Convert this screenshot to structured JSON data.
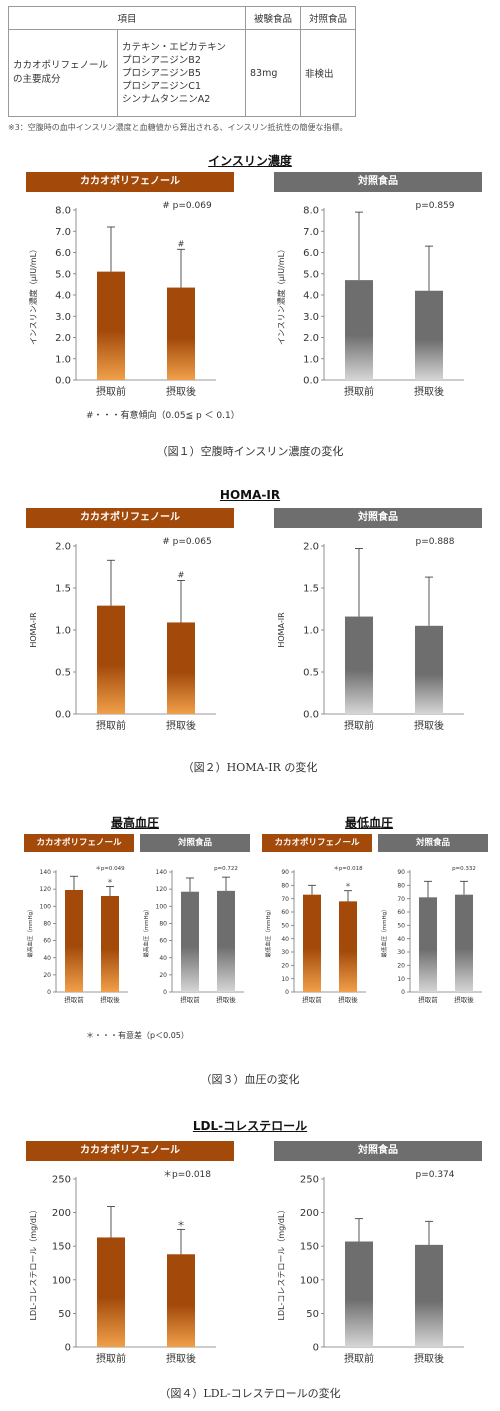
{
  "table": {
    "headers": [
      "項目",
      "被験食品",
      "対照食品"
    ],
    "row_label": "カカオポリフェノールの主要成分",
    "components": [
      "カテキン・エピカテキン",
      "プロシアニジンB2",
      "プロシアニジンB5",
      "プロシアニジンC1",
      "シンナムタンニンA2"
    ],
    "test_value": "83mg",
    "control_value": "非検出"
  },
  "note": "※3：空腹時の血中インスリン濃度と血糖値から算出される、インスリン抵抗性の簡便な指標。",
  "colors": {
    "cocoa": "#a34a0b",
    "control": "#6e6e6e"
  },
  "sections": [
    {
      "title": "インスリン濃度",
      "caption": "（図１）空腹時インスリン濃度の変化",
      "footnote": "#・・・有意傾向（0.05≦ p ＜ 0.1）"
    },
    {
      "title": "HOMA-IR",
      "caption": "（図２）HOMA-IR の変化",
      "footnote": ""
    },
    {
      "titles": [
        "最高血圧",
        "最低血圧"
      ],
      "caption": "（図３）血圧の変化",
      "footnote": "＊・・・有意差（p＜0.05）"
    },
    {
      "title": "LDL-コレステロール",
      "caption": "（図４）LDL-コレステロールの変化",
      "footnote": ""
    }
  ],
  "chart_data": [
    {
      "type": "bar",
      "group": "カカオポリフェノール",
      "categories": [
        "摂取前",
        "摂取後"
      ],
      "values": [
        5.1,
        4.35
      ],
      "errors": [
        2.1,
        1.8
      ],
      "marks": [
        "",
        "#"
      ],
      "pvalue": "# p=0.069",
      "ylabel": "インスリン濃度（μIU/mL）",
      "ylim": [
        0,
        8
      ],
      "ticks": [
        "0.0",
        "1.0",
        "2.0",
        "3.0",
        "4.0",
        "5.0",
        "6.0",
        "7.0",
        "8.0"
      ]
    },
    {
      "type": "bar",
      "group": "対照食品",
      "categories": [
        "摂取前",
        "摂取後"
      ],
      "values": [
        4.7,
        4.2
      ],
      "errors": [
        3.2,
        2.1
      ],
      "marks": [
        "",
        ""
      ],
      "pvalue": "p=0.859",
      "ylabel": "インスリン濃度（μIU/mL）",
      "ylim": [
        0,
        8
      ],
      "ticks": [
        "0.0",
        "1.0",
        "2.0",
        "3.0",
        "4.0",
        "5.0",
        "6.0",
        "7.0",
        "8.0"
      ]
    },
    {
      "type": "bar",
      "group": "カカオポリフェノール",
      "categories": [
        "摂取前",
        "摂取後"
      ],
      "values": [
        1.29,
        1.09
      ],
      "errors": [
        0.54,
        0.5
      ],
      "marks": [
        "",
        "#"
      ],
      "pvalue": "# p=0.065",
      "ylabel": "HOMA-IR",
      "ylim": [
        0,
        2
      ],
      "ticks": [
        "0.0",
        "0.5",
        "1.0",
        "1.5",
        "2.0"
      ]
    },
    {
      "type": "bar",
      "group": "対照食品",
      "categories": [
        "摂取前",
        "摂取後"
      ],
      "values": [
        1.16,
        1.05
      ],
      "errors": [
        0.81,
        0.58
      ],
      "marks": [
        "",
        ""
      ],
      "pvalue": "p=0.888",
      "ylabel": "HOMA-IR",
      "ylim": [
        0,
        2
      ],
      "ticks": [
        "0.0",
        "0.5",
        "1.0",
        "1.5",
        "2.0"
      ]
    },
    {
      "type": "bar",
      "group": "カカオポリフェノール",
      "categories": [
        "摂取前",
        "摂取後"
      ],
      "values": [
        119,
        112
      ],
      "errors": [
        16,
        11
      ],
      "marks": [
        "",
        "＊"
      ],
      "pvalue": "＊p=0.049",
      "ylabel": "最高血圧（mmHg）",
      "ylim": [
        0,
        140
      ],
      "ticks": [
        "0",
        "20",
        "40",
        "60",
        "80",
        "100",
        "120",
        "140"
      ]
    },
    {
      "type": "bar",
      "group": "対照食品",
      "categories": [
        "摂取前",
        "摂取後"
      ],
      "values": [
        117,
        118
      ],
      "errors": [
        16,
        16
      ],
      "marks": [
        "",
        ""
      ],
      "pvalue": "p=0.722",
      "ylabel": "最高血圧（mmHg）",
      "ylim": [
        0,
        140
      ],
      "ticks": [
        "0",
        "20",
        "40",
        "60",
        "80",
        "100",
        "120",
        "140"
      ]
    },
    {
      "type": "bar",
      "group": "カカオポリフェノール",
      "categories": [
        "摂取前",
        "摂取後"
      ],
      "values": [
        73,
        68
      ],
      "errors": [
        7,
        8
      ],
      "marks": [
        "",
        "＊"
      ],
      "pvalue": "＊p=0.018",
      "ylabel": "最低血圧（mmHg）",
      "ylim": [
        0,
        90
      ],
      "ticks": [
        "0",
        "10",
        "20",
        "30",
        "40",
        "50",
        "60",
        "70",
        "80",
        "90"
      ]
    },
    {
      "type": "bar",
      "group": "対照食品",
      "categories": [
        "摂取前",
        "摂取後"
      ],
      "values": [
        71,
        73
      ],
      "errors": [
        12,
        10
      ],
      "marks": [
        "",
        ""
      ],
      "pvalue": "p=0.332",
      "ylabel": "最低血圧（mmHg）",
      "ylim": [
        0,
        90
      ],
      "ticks": [
        "0",
        "10",
        "20",
        "30",
        "40",
        "50",
        "60",
        "70",
        "80",
        "90"
      ]
    },
    {
      "type": "bar",
      "group": "カカオポリフェノール",
      "categories": [
        "摂取前",
        "摂取後"
      ],
      "values": [
        163,
        138
      ],
      "errors": [
        46,
        37
      ],
      "marks": [
        "",
        "＊"
      ],
      "pvalue": "＊p=0.018",
      "ylabel": "LDL-コレステロール（mg/dL）",
      "ylim": [
        0,
        250
      ],
      "ticks": [
        "0",
        "50",
        "100",
        "150",
        "200",
        "250"
      ]
    },
    {
      "type": "bar",
      "group": "対照食品",
      "categories": [
        "摂取前",
        "摂取後"
      ],
      "values": [
        157,
        152
      ],
      "errors": [
        34,
        35
      ],
      "marks": [
        "",
        ""
      ],
      "pvalue": "p=0.374",
      "ylabel": "LDL-コレステロール（mg/dL）",
      "ylim": [
        0,
        250
      ],
      "ticks": [
        "0",
        "50",
        "100",
        "150",
        "200",
        "250"
      ]
    }
  ]
}
